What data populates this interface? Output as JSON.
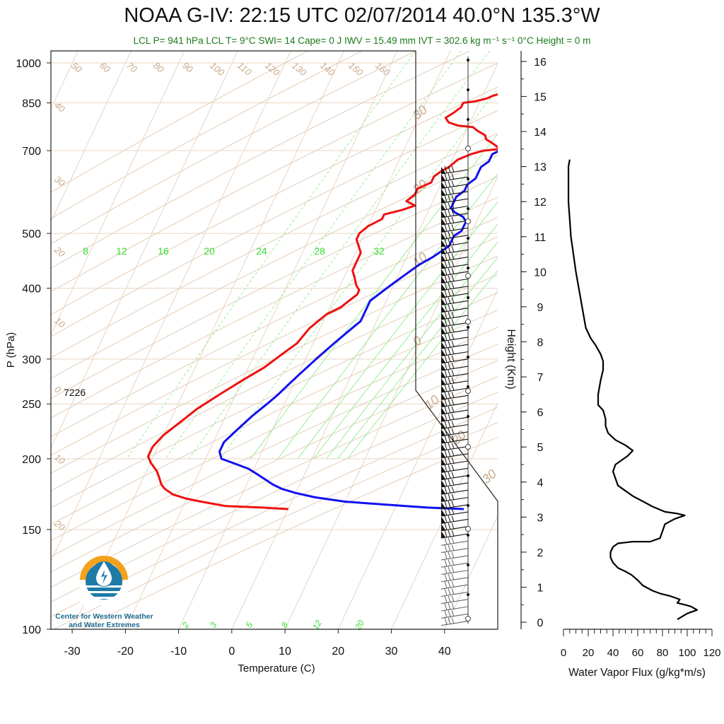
{
  "title": "NOAA G-IV: 22:15 UTC 02/07/2014  40.0°N 135.3°W",
  "subtitle": "LCL P= 941 hPa  LCL T= 9°C  SWI= 14  Cape= 0 J  IWV = 15.49 mm  IVT = 302.6 kg m⁻¹ s⁻¹  0°C Height = 0 m",
  "logo_text": [
    "Center for Western Weather",
    "and Water Extremes"
  ],
  "chart_data": [
    {
      "type": "line",
      "name": "skew-t",
      "xlabel": "Temperature (C)",
      "ylabel": "P (hPa)",
      "xlim": [
        -34,
        50
      ],
      "ylim": [
        1050,
        100
      ],
      "x_ticks": [
        -30,
        -20,
        -10,
        0,
        10,
        20,
        30,
        40
      ],
      "y_ticks": [
        1000,
        850,
        700,
        500,
        400,
        300,
        250,
        200,
        150,
        100
      ],
      "y_scale": "log",
      "annotations": [
        "7226"
      ],
      "mixing_ratio_labels": [
        "8",
        "12",
        "16",
        "20",
        "24",
        "28",
        "32"
      ],
      "mixing_ratio_lower_labels": [
        "2",
        "3",
        "5",
        "8",
        "12",
        "20"
      ],
      "dry_adiabat_labels": [
        "50",
        "60",
        "70",
        "80",
        "90",
        "100",
        "110",
        "120",
        "130",
        "140",
        "150",
        "160",
        "40",
        "30",
        "20",
        "10",
        "0",
        "10",
        "20"
      ],
      "isotherm_labels": [
        "30",
        "20",
        "10",
        "0",
        "10",
        "20",
        "30"
      ],
      "colors": {
        "temperature": "#ee1111",
        "dewpoint_curve": "#1111ee",
        "adiabat": "#d9b99a",
        "mixing": "#33dd33"
      },
      "series": [
        {
          "color": "#ee1111",
          "points": [
            [
              8,
              1008
            ],
            [
              8,
              995
            ],
            [
              7,
              985
            ],
            [
              7.5,
              975
            ],
            [
              6.5,
              965
            ],
            [
              5,
              950
            ],
            [
              5.5,
              938
            ],
            [
              4,
              925
            ],
            [
              5,
              915
            ],
            [
              4,
              905
            ],
            [
              5,
              895
            ],
            [
              3.5,
              885
            ],
            [
              2,
              875
            ],
            [
              1,
              865
            ],
            [
              -1,
              855
            ],
            [
              -3,
              850
            ],
            [
              -3,
              835
            ],
            [
              -4,
              815
            ],
            [
              -5,
              800
            ],
            [
              -4,
              785
            ],
            [
              -2,
              775
            ],
            [
              1,
              770
            ],
            [
              2,
              760
            ],
            [
              4,
              745
            ],
            [
              4.5,
              733
            ],
            [
              6,
              722
            ],
            [
              8,
              705
            ],
            [
              5,
              700
            ],
            [
              3,
              690
            ],
            [
              1,
              675
            ],
            [
              0,
              655
            ],
            [
              -1,
              645
            ],
            [
              -2,
              630
            ],
            [
              -2,
              615
            ],
            [
              -4,
              600
            ],
            [
              -4,
              585
            ],
            [
              -5,
              570
            ],
            [
              -3,
              560
            ],
            [
              -5,
              550
            ],
            [
              -8,
              540
            ],
            [
              -8,
              530
            ],
            [
              -10,
              515
            ],
            [
              -11,
              500
            ],
            [
              -11,
              488
            ],
            [
              -10,
              475
            ],
            [
              -9,
              462
            ],
            [
              -9,
              445
            ],
            [
              -9,
              430
            ],
            [
              -8,
              418
            ],
            [
              -7,
              405
            ],
            [
              -6,
              397
            ],
            [
              -6,
              390
            ],
            [
              -7,
              380
            ],
            [
              -8,
              370
            ],
            [
              -10,
              360
            ],
            [
              -12,
              340
            ],
            [
              -13,
              320
            ],
            [
              -15,
              305
            ],
            [
              -17,
              290
            ],
            [
              -20,
              275
            ],
            [
              -23,
              260
            ],
            [
              -26,
              245
            ],
            [
              -28,
              232
            ],
            [
              -30,
              220
            ],
            [
              -31,
              210
            ],
            [
              -31,
              202
            ],
            [
              -30,
              197
            ],
            [
              -28,
              190
            ],
            [
              -27,
              185
            ],
            [
              -26,
              180
            ],
            [
              -25,
              177
            ],
            [
              -23,
              173
            ],
            [
              -20,
              170
            ],
            [
              -17,
              168
            ],
            [
              -12,
              165
            ],
            [
              -5,
              164
            ],
            [
              0,
              163
            ]
          ]
        },
        {
          "color": "#1111ee",
          "points": [
            [
              16,
              1008
            ],
            [
              13,
              990
            ],
            [
              12,
              975
            ],
            [
              11,
              955
            ],
            [
              10,
              935
            ],
            [
              9,
              915
            ],
            [
              9,
              900
            ],
            [
              9,
              880
            ],
            [
              9,
              860
            ],
            [
              9,
              845
            ],
            [
              10,
              830
            ],
            [
              11,
              815
            ],
            [
              11,
              800
            ],
            [
              11,
              785
            ],
            [
              11,
              770
            ],
            [
              10,
              760
            ],
            [
              9,
              745
            ],
            [
              8,
              730
            ],
            [
              8,
              715
            ],
            [
              8,
              700
            ],
            [
              7,
              690
            ],
            [
              7,
              680
            ],
            [
              7,
              670
            ],
            [
              6,
              655
            ],
            [
              6,
              640
            ],
            [
              6,
              625
            ],
            [
              5,
              610
            ],
            [
              5,
              595
            ],
            [
              4,
              580
            ],
            [
              4,
              565
            ],
            [
              4,
              555
            ],
            [
              5,
              545
            ],
            [
              7,
              535
            ],
            [
              8,
              525
            ],
            [
              8,
              515
            ],
            [
              8,
              505
            ],
            [
              7,
              495
            ],
            [
              7,
              485
            ],
            [
              7,
              475
            ],
            [
              6,
              465
            ],
            [
              5,
              455
            ],
            [
              3,
              440
            ],
            [
              2,
              430
            ],
            [
              1,
              420
            ],
            [
              0,
              410
            ],
            [
              -1,
              400
            ],
            [
              -2,
              390
            ],
            [
              -3,
              380
            ],
            [
              -3,
              370
            ],
            [
              -3,
              360
            ],
            [
              -3,
              350
            ],
            [
              -4,
              340
            ],
            [
              -5,
              330
            ],
            [
              -6,
              320
            ],
            [
              -7,
              310
            ],
            [
              -8,
              300
            ],
            [
              -9,
              290
            ],
            [
              -10,
              280
            ],
            [
              -11,
              270
            ],
            [
              -12,
              260
            ],
            [
              -13,
              252
            ],
            [
              -14,
              245
            ],
            [
              -15,
              238
            ],
            [
              -16,
              230
            ],
            [
              -17,
              222
            ],
            [
              -18,
              214
            ],
            [
              -18,
              206
            ],
            [
              -17,
              200
            ],
            [
              -14,
              196
            ],
            [
              -11,
              192
            ],
            [
              -9,
              188
            ],
            [
              -7,
              184
            ],
            [
              -5,
              180
            ],
            [
              -3,
              177
            ],
            [
              0,
              174
            ],
            [
              4,
              171
            ],
            [
              10,
              168
            ],
            [
              18,
              166
            ],
            [
              26,
              164
            ],
            [
              33,
              163
            ]
          ]
        }
      ]
    },
    {
      "type": "line",
      "name": "water-vapor-flux",
      "xlabel": "Water Vapor Flux (g/kg*m/s)",
      "ylabel": "Height (Km)",
      "xlim": [
        0,
        120
      ],
      "ylim": [
        -0.2,
        16.3
      ],
      "x_ticks": [
        0,
        20,
        40,
        60,
        80,
        100,
        120
      ],
      "y_ticks": [
        0,
        1,
        2,
        3,
        4,
        5,
        6,
        7,
        8,
        9,
        10,
        11,
        12,
        13,
        14,
        15,
        16
      ],
      "series": [
        {
          "color": "#000000",
          "points": [
            [
              92,
              0.08
            ],
            [
              100,
              0.25
            ],
            [
              108,
              0.35
            ],
            [
              103,
              0.45
            ],
            [
              98,
              0.5
            ],
            [
              92,
              0.55
            ],
            [
              94,
              0.65
            ],
            [
              90,
              0.7
            ],
            [
              86,
              0.75
            ],
            [
              78,
              0.82
            ],
            [
              72,
              0.9
            ],
            [
              64,
              1.05
            ],
            [
              60,
              1.2
            ],
            [
              55,
              1.35
            ],
            [
              50,
              1.45
            ],
            [
              44,
              1.55
            ],
            [
              40,
              1.7
            ],
            [
              38,
              1.85
            ],
            [
              38,
              2.0
            ],
            [
              40,
              2.15
            ],
            [
              44,
              2.25
            ],
            [
              56,
              2.3
            ],
            [
              70,
              2.3
            ],
            [
              78,
              2.4
            ],
            [
              80,
              2.6
            ],
            [
              82,
              2.8
            ],
            [
              90,
              2.95
            ],
            [
              98,
              3.05
            ],
            [
              92,
              3.1
            ],
            [
              82,
              3.15
            ],
            [
              72,
              3.3
            ],
            [
              64,
              3.45
            ],
            [
              56,
              3.6
            ],
            [
              50,
              3.75
            ],
            [
              44,
              3.9
            ],
            [
              42,
              4.1
            ],
            [
              40,
              4.3
            ],
            [
              42,
              4.5
            ],
            [
              48,
              4.65
            ],
            [
              52,
              4.75
            ],
            [
              56,
              4.9
            ],
            [
              50,
              5.05
            ],
            [
              42,
              5.2
            ],
            [
              36,
              5.4
            ],
            [
              34,
              5.6
            ],
            [
              34,
              5.8
            ],
            [
              32,
              6.05
            ],
            [
              28,
              6.2
            ],
            [
              28,
              6.5
            ],
            [
              30,
              6.9
            ],
            [
              32,
              7.2
            ],
            [
              32,
              7.45
            ],
            [
              30,
              7.65
            ],
            [
              26,
              7.9
            ],
            [
              22,
              8.1
            ],
            [
              18,
              8.4
            ],
            [
              16,
              8.8
            ],
            [
              14,
              9.2
            ],
            [
              12,
              9.6
            ],
            [
              10,
              10.0
            ],
            [
              8,
              10.5
            ],
            [
              6,
              11.0
            ],
            [
              5,
              11.5
            ],
            [
              4,
              12.0
            ],
            [
              4,
              12.5
            ],
            [
              4,
              13.0
            ],
            [
              5,
              13.2
            ]
          ]
        }
      ]
    }
  ]
}
